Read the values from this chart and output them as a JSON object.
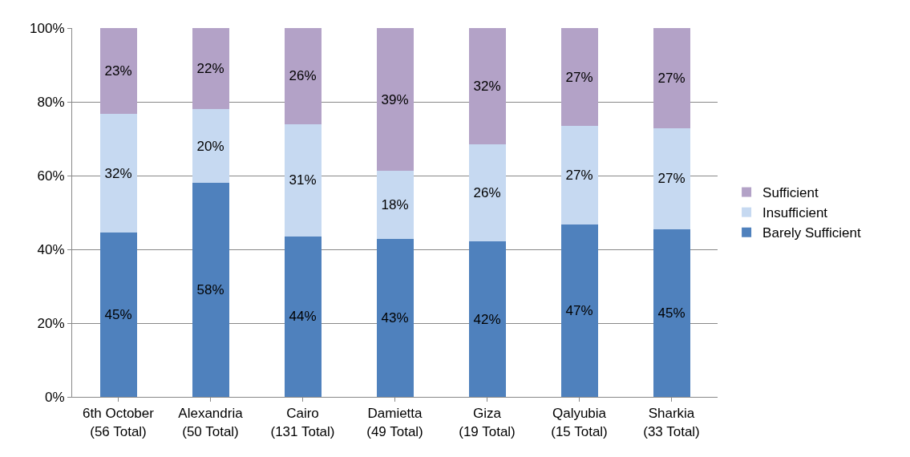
{
  "chart_data": {
    "type": "bar",
    "stacked": true,
    "categories": [
      "6th October\n(56 Total)",
      "Alexandria\n(50 Total)",
      "Cairo\n(131 Total)",
      "Damietta\n(49 Total)",
      "Giza\n(19 Total)",
      "Qalyubia\n(15 Total)",
      "Sharkia\n(33 Total)"
    ],
    "series": [
      {
        "name": "Barely Sufficient",
        "color": "#4f81bd",
        "values": [
          44.6,
          58,
          43.5,
          42.9,
          42.1,
          46.7,
          45.5
        ],
        "value_labels": [
          "45%",
          "58%",
          "44%",
          "43%",
          "42%",
          "47%",
          "45%"
        ]
      },
      {
        "name": "Insufficient",
        "color": "#c6d9f1",
        "values": [
          32.1,
          20,
          30.5,
          18.4,
          26.3,
          26.7,
          27.3
        ],
        "value_labels": [
          "32%",
          "20%",
          "31%",
          "18%",
          "26%",
          "27%",
          "27%"
        ]
      },
      {
        "name": "Sufficient",
        "color": "#b3a2c7",
        "values": [
          23.2,
          22,
          26.0,
          38.7,
          31.6,
          26.6,
          27.2
        ],
        "value_labels": [
          "23%",
          "22%",
          "26%",
          "39%",
          "32%",
          "27%",
          "27%"
        ]
      }
    ],
    "ylim": [
      0,
      100
    ],
    "yticks": [
      {
        "value": 0,
        "label": "0%"
      },
      {
        "value": 20,
        "label": "20%"
      },
      {
        "value": 40,
        "label": "40%"
      },
      {
        "value": 60,
        "label": "60%"
      },
      {
        "value": 80,
        "label": "80%"
      },
      {
        "value": 100,
        "label": "100%"
      }
    ],
    "grid": "y",
    "legend": "right"
  }
}
